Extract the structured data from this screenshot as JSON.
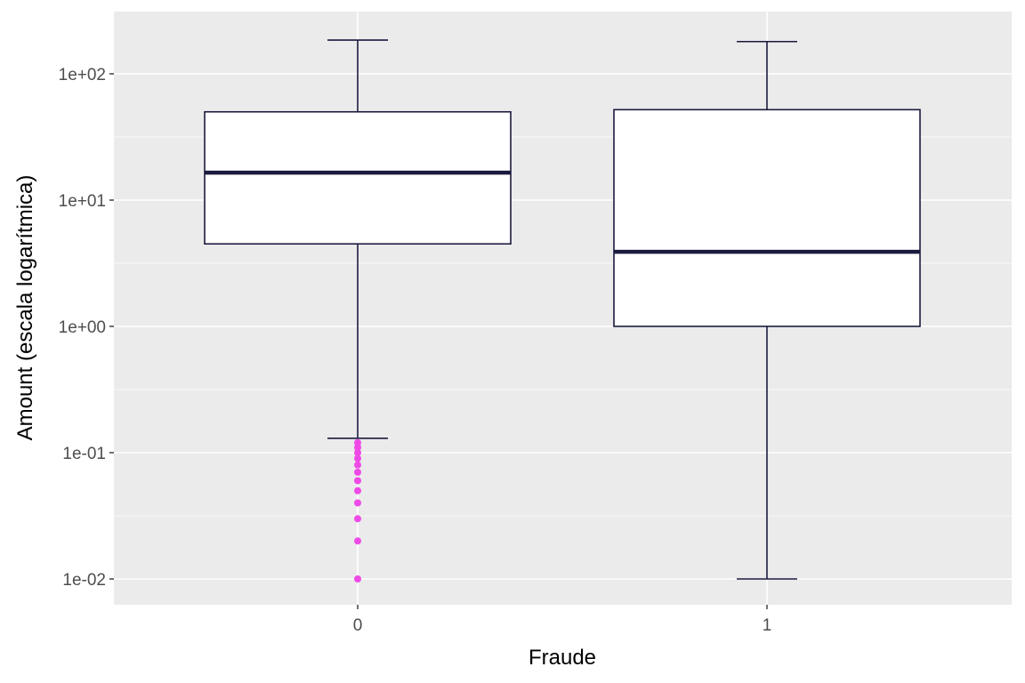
{
  "chart_data": {
    "type": "boxplot",
    "title": "",
    "xlabel": "Fraude",
    "ylabel": "Amount (escala logarítmica)",
    "y_scale": "log10",
    "ylim": [
      0.0063,
      280
    ],
    "y_ticks": [
      {
        "value": 0.01,
        "label": "1e-02"
      },
      {
        "value": 0.1,
        "label": "1e-01"
      },
      {
        "value": 1,
        "label": "1e+00"
      },
      {
        "value": 10,
        "label": "1e+01"
      },
      {
        "value": 100,
        "label": "1e+02"
      }
    ],
    "categories": [
      "0",
      "1"
    ],
    "boxes": [
      {
        "category": "0",
        "whisker_low": 0.13,
        "q1": 4.5,
        "median": 16.5,
        "q3": 50,
        "whisker_high": 185,
        "outliers": [
          0.12,
          0.11,
          0.1,
          0.09,
          0.08,
          0.07,
          0.06,
          0.05,
          0.04,
          0.03,
          0.02,
          0.01
        ]
      },
      {
        "category": "1",
        "whisker_low": 0.01,
        "q1": 1.0,
        "median": 3.9,
        "q3": 52,
        "whisker_high": 180,
        "outliers": []
      }
    ],
    "grid": true,
    "legend": "none",
    "colors": {
      "panel_background": "#ebebeb",
      "grid_line": "#ffffff",
      "box_fill": "#ffffff",
      "box_line": "#1a1a3e",
      "outlier": "#ee4be6"
    }
  }
}
